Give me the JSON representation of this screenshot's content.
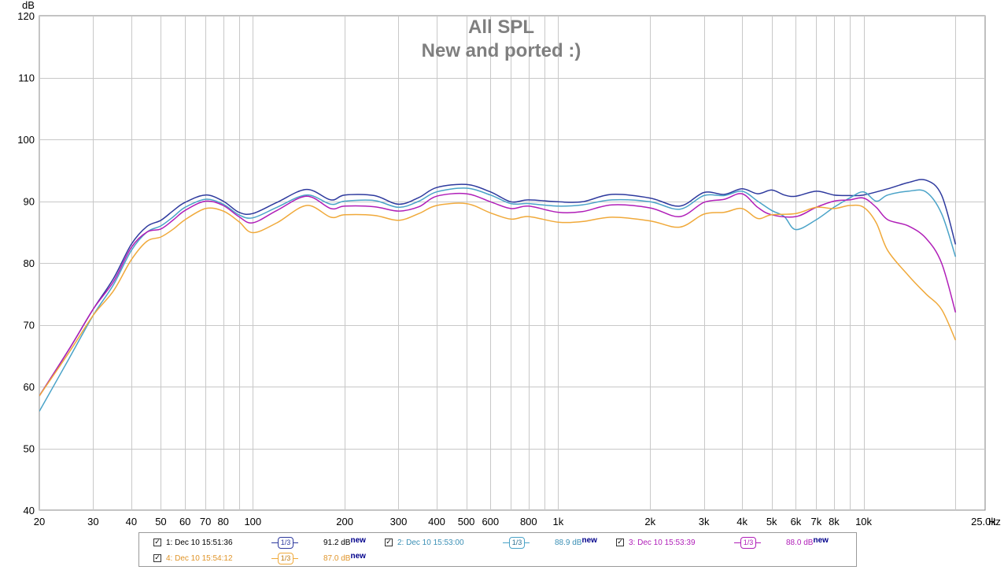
{
  "chart_data": {
    "type": "line",
    "title": "All SPL",
    "subtitle": "New and ported :)",
    "ylabel": "dB",
    "xlabel_unit": "Hz",
    "xscale": "log",
    "xlim": [
      20,
      25000
    ],
    "ylim": [
      40,
      120
    ],
    "grid": true,
    "legend_placement": "bottom",
    "y_ticks": [
      40,
      50,
      60,
      70,
      80,
      90,
      100,
      110,
      120
    ],
    "x_ticks": [
      {
        "v": 20,
        "label": "20"
      },
      {
        "v": 30,
        "label": "30"
      },
      {
        "v": 40,
        "label": "40"
      },
      {
        "v": 50,
        "label": "50"
      },
      {
        "v": 60,
        "label": "60"
      },
      {
        "v": 70,
        "label": "70"
      },
      {
        "v": 80,
        "label": "80"
      },
      {
        "v": 100,
        "label": "100"
      },
      {
        "v": 200,
        "label": "200"
      },
      {
        "v": 300,
        "label": "300"
      },
      {
        "v": 400,
        "label": "400"
      },
      {
        "v": 500,
        "label": "500"
      },
      {
        "v": 600,
        "label": "600"
      },
      {
        "v": 800,
        "label": "800"
      },
      {
        "v": 1000,
        "label": "1k"
      },
      {
        "v": 2000,
        "label": "2k"
      },
      {
        "v": 3000,
        "label": "3k"
      },
      {
        "v": 4000,
        "label": "4k"
      },
      {
        "v": 5000,
        "label": "5k"
      },
      {
        "v": 6000,
        "label": "6k"
      },
      {
        "v": 7000,
        "label": "7k"
      },
      {
        "v": 8000,
        "label": "8k"
      },
      {
        "v": 10000,
        "label": "10k"
      },
      {
        "v": 25000,
        "label": "25.0k"
      }
    ],
    "series": [
      {
        "name": "1: Dec 10 15:51:36",
        "color": "#2e3a9e",
        "smoothing": "1/3",
        "level": "91.2 dB",
        "level_tag": "new",
        "x": [
          20,
          25,
          30,
          35,
          40,
          45,
          50,
          55,
          60,
          70,
          80,
          90,
          100,
          120,
          150,
          180,
          200,
          250,
          300,
          350,
          400,
          500,
          600,
          700,
          800,
          1000,
          1200,
          1500,
          2000,
          2500,
          3000,
          3500,
          4000,
          4500,
          5000,
          5500,
          6000,
          7000,
          8000,
          9000,
          10000,
          12000,
          14000,
          16000,
          18000,
          20000
        ],
        "y": [
          58.5,
          66,
          72.5,
          77.5,
          83,
          85.9,
          86.9,
          88.5,
          89.8,
          91,
          90,
          88.2,
          88,
          89.8,
          91.9,
          90.2,
          91,
          90.9,
          89.5,
          90.6,
          92.2,
          92.7,
          91.5,
          89.9,
          90.2,
          89.9,
          89.9,
          91.1,
          90.5,
          89.2,
          91.4,
          91.1,
          92,
          91.2,
          91.8,
          91,
          90.8,
          91.6,
          91,
          90.9,
          91,
          92,
          93,
          93.4,
          91,
          83
        ]
      },
      {
        "name": "2: Dec 10 15:53:00",
        "color": "#4aa3c8",
        "smoothing": "1/3",
        "level": "88.9 dB",
        "level_tag": "new",
        "x": [
          20,
          25,
          30,
          35,
          40,
          45,
          50,
          55,
          60,
          70,
          80,
          90,
          100,
          120,
          150,
          180,
          200,
          250,
          300,
          350,
          400,
          500,
          600,
          700,
          800,
          1000,
          1200,
          1500,
          2000,
          2500,
          3000,
          3500,
          4000,
          4500,
          5000,
          5500,
          6000,
          7000,
          8000,
          9000,
          10000,
          11000,
          12000,
          14000,
          16000,
          18000,
          20000
        ],
        "y": [
          56,
          64.5,
          71.5,
          76.5,
          82,
          85,
          86,
          87.5,
          89,
          90.3,
          89.5,
          87.8,
          87.3,
          89,
          91,
          89.5,
          90,
          90.1,
          89,
          90,
          91.5,
          92.1,
          91,
          89.6,
          89.6,
          89.2,
          89.4,
          90.2,
          89.9,
          88.7,
          90.9,
          90.9,
          91.6,
          90,
          88.5,
          87.5,
          85.4,
          87,
          89,
          90.5,
          91.5,
          90,
          91,
          91.6,
          91.5,
          88,
          81
        ]
      },
      {
        "name": "3: Dec 10 15:53:39",
        "color": "#b01eb8",
        "smoothing": "1/3",
        "level": "88.0 dB",
        "level_tag": "new",
        "x": [
          20,
          25,
          30,
          35,
          40,
          45,
          50,
          55,
          60,
          70,
          80,
          90,
          100,
          120,
          150,
          180,
          200,
          250,
          300,
          350,
          400,
          500,
          600,
          700,
          800,
          1000,
          1200,
          1500,
          2000,
          2500,
          3000,
          3500,
          4000,
          4500,
          5000,
          6000,
          7000,
          8000,
          9000,
          10000,
          11000,
          12000,
          14000,
          16000,
          18000,
          20000
        ],
        "y": [
          58.5,
          66,
          72.5,
          77,
          82.5,
          85,
          85.5,
          87,
          88.5,
          90,
          89.3,
          87.5,
          86.5,
          88.5,
          90.8,
          88.8,
          89.2,
          89.1,
          88.4,
          89.1,
          90.8,
          91.2,
          89.9,
          88.8,
          89.2,
          88.2,
          88.3,
          89.4,
          88.9,
          87.5,
          89.8,
          90.3,
          91.2,
          89,
          87.8,
          87.5,
          89,
          90,
          90.2,
          90.5,
          89,
          87,
          86,
          84,
          80,
          72
        ]
      },
      {
        "name": "4: Dec 10 15:54:12",
        "color": "#f0a93a",
        "smoothing": "1/3",
        "level": "87.0 dB",
        "level_tag": "new",
        "x": [
          20,
          25,
          30,
          35,
          40,
          45,
          50,
          55,
          60,
          70,
          80,
          90,
          100,
          120,
          150,
          180,
          200,
          250,
          300,
          350,
          400,
          500,
          600,
          700,
          800,
          1000,
          1200,
          1500,
          2000,
          2500,
          3000,
          3500,
          4000,
          4500,
          5000,
          6000,
          7000,
          8000,
          9000,
          10000,
          11000,
          12000,
          14000,
          16000,
          18000,
          20000
        ],
        "y": [
          58.5,
          65.5,
          71.5,
          75.5,
          80.5,
          83.5,
          84.2,
          85.5,
          87,
          88.8,
          88.4,
          86.7,
          84.9,
          86.5,
          89.3,
          87.4,
          87.8,
          87.7,
          86.9,
          88,
          89.3,
          89.6,
          88.1,
          87.1,
          87.5,
          86.6,
          86.7,
          87.4,
          86.8,
          85.8,
          87.9,
          88.2,
          88.8,
          87.2,
          87.8,
          88,
          89,
          88.8,
          89.3,
          89,
          86.5,
          82,
          78,
          75,
          72.5,
          67.5
        ]
      }
    ]
  }
}
